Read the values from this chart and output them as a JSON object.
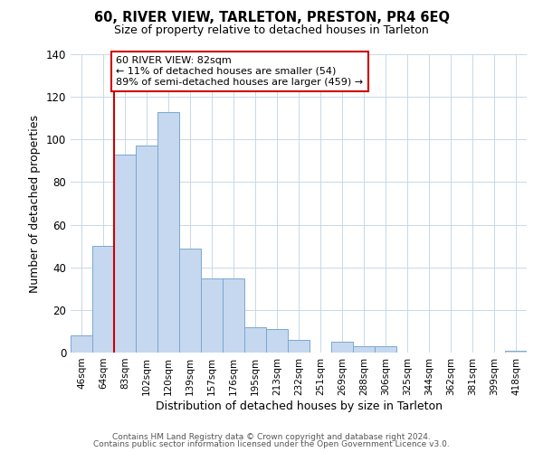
{
  "title": "60, RIVER VIEW, TARLETON, PRESTON, PR4 6EQ",
  "subtitle": "Size of property relative to detached houses in Tarleton",
  "xlabel": "Distribution of detached houses by size in Tarleton",
  "ylabel": "Number of detached properties",
  "bar_labels": [
    "46sqm",
    "64sqm",
    "83sqm",
    "102sqm",
    "120sqm",
    "139sqm",
    "157sqm",
    "176sqm",
    "195sqm",
    "213sqm",
    "232sqm",
    "251sqm",
    "269sqm",
    "288sqm",
    "306sqm",
    "325sqm",
    "344sqm",
    "362sqm",
    "381sqm",
    "399sqm",
    "418sqm"
  ],
  "bar_values": [
    8,
    50,
    93,
    97,
    113,
    49,
    35,
    35,
    12,
    11,
    6,
    0,
    5,
    3,
    3,
    0,
    0,
    0,
    0,
    0,
    1
  ],
  "bar_color": "#c5d8f0",
  "bar_edge_color": "#7ba7d0",
  "vline_color": "#cc0000",
  "ylim": [
    0,
    140
  ],
  "yticks": [
    0,
    20,
    40,
    60,
    80,
    100,
    120,
    140
  ],
  "annotation_line1": "60 RIVER VIEW: 82sqm",
  "annotation_line2": "← 11% of detached houses are smaller (54)",
  "annotation_line3": "89% of semi-detached houses are larger (459) →",
  "annotation_box_color": "#ffffff",
  "annotation_box_edge": "#cc0000",
  "footer_line1": "Contains HM Land Registry data © Crown copyright and database right 2024.",
  "footer_line2": "Contains public sector information licensed under the Open Government Licence v3.0.",
  "background_color": "#ffffff",
  "grid_color": "#c8d8e8"
}
